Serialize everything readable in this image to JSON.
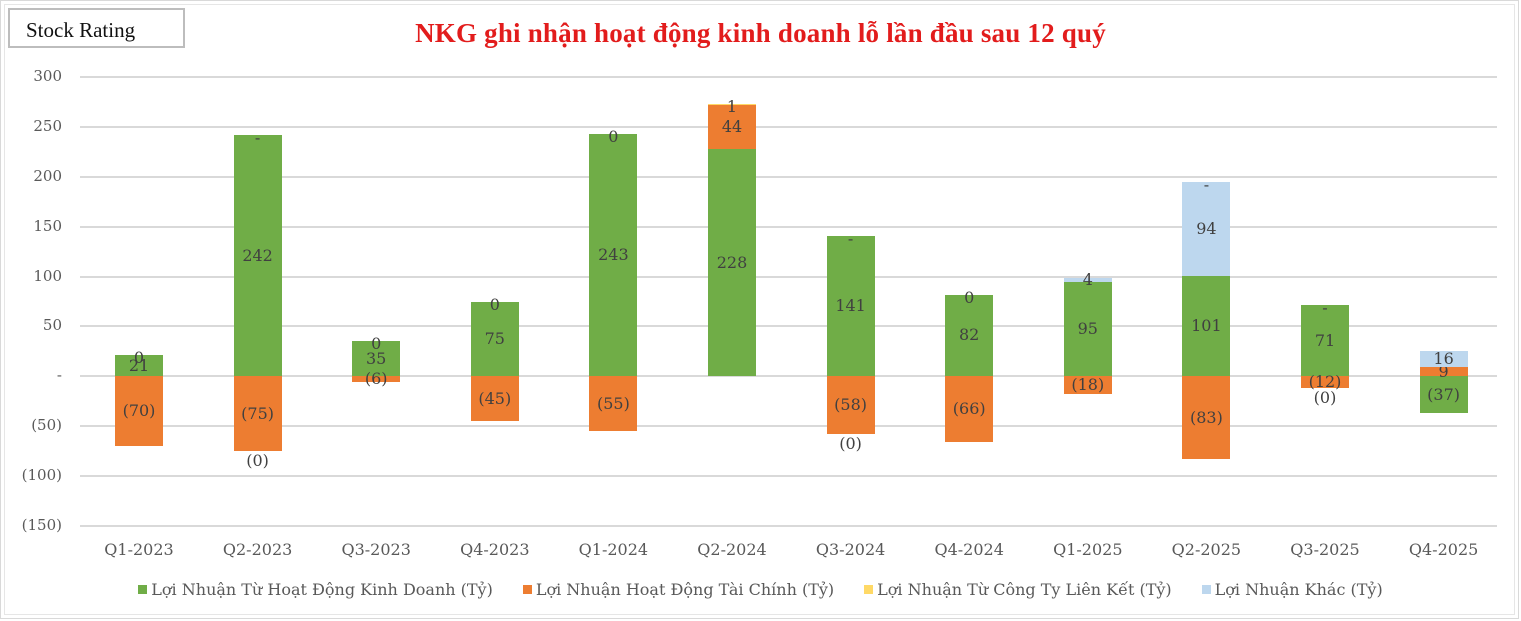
{
  "header": {
    "badge": "Stock Rating",
    "title": "NKG ghi nhận hoạt động kinh doanh lỗ lần đầu sau 12 quý"
  },
  "colors": {
    "operating": "#70ad47",
    "financial": "#ed7d31",
    "associates": "#ffd966",
    "other": "#bdd7ee",
    "title": "#e21c1c"
  },
  "axis": {
    "yticks": [
      "300",
      "250",
      "200",
      "150",
      "100",
      "50",
      "-",
      "(50)",
      "(100)",
      "(150)"
    ]
  },
  "legend": [
    {
      "label": "Lợi Nhuận Từ Hoạt Động Kinh Doanh (Tỷ)",
      "color": "#70ad47"
    },
    {
      "label": "Lợi Nhuận Hoạt Động Tài Chính (Tỷ)",
      "color": "#ed7d31"
    },
    {
      "label": "Lợi Nhuận Từ Công Ty Liên Kết (Tỷ)",
      "color": "#ffd966"
    },
    {
      "label": "Lợi Nhuận Khác (Tỷ)",
      "color": "#bdd7ee"
    }
  ],
  "chart_data": {
    "type": "bar",
    "stacked": true,
    "title": "NKG ghi nhận hoạt động kinh doanh lỗ lần đầu sau 12 quý",
    "xlabel": "",
    "ylabel": "",
    "ylim": [
      -150,
      300
    ],
    "yticks": [
      300,
      250,
      200,
      150,
      100,
      50,
      0,
      -50,
      -100,
      -150
    ],
    "grid": true,
    "legend_position": "bottom",
    "categories": [
      "Q1-2023",
      "Q2-2023",
      "Q3-2023",
      "Q4-2023",
      "Q1-2024",
      "Q2-2024",
      "Q3-2024",
      "Q4-2024",
      "Q1-2025",
      "Q2-2025",
      "Q3-2025",
      "Q4-2025"
    ],
    "series": [
      {
        "name": "Lợi Nhuận Từ Hoạt Động Kinh Doanh (Tỷ)",
        "color": "#70ad47",
        "values": [
          21,
          242,
          35,
          75,
          243,
          228,
          141,
          82,
          95,
          101,
          71,
          -37
        ],
        "labels": [
          "21",
          "242",
          "35",
          "75",
          "243",
          "228",
          "141",
          "82",
          "95",
          "101",
          "71",
          "(37)"
        ]
      },
      {
        "name": "Lợi Nhuận Hoạt Động Tài Chính (Tỷ)",
        "color": "#ed7d31",
        "values": [
          -70,
          -75,
          -6,
          -45,
          -55,
          44,
          -58,
          -66,
          -18,
          -83,
          -12,
          9
        ],
        "labels": [
          "(70)",
          "(75)",
          "(6)",
          "(45)",
          "(55)",
          "44",
          "(58)",
          "(66)",
          "(18)",
          "(83)",
          "(12)",
          "9"
        ]
      },
      {
        "name": "Lợi Nhuận Từ Công Ty Liên Kết (Tỷ)",
        "color": "#ffd966",
        "values": [
          0,
          0,
          0,
          0,
          0,
          1,
          0,
          0,
          0,
          0,
          0,
          0
        ],
        "labels": [
          "0",
          "-",
          "0",
          "0",
          "0",
          "1",
          "-",
          "0",
          "",
          "-",
          "-",
          ""
        ]
      },
      {
        "name": "Lợi Nhuận Khác (Tỷ)",
        "color": "#bdd7ee",
        "values": [
          0,
          0,
          0,
          0,
          0,
          0,
          0,
          0,
          4,
          94,
          0,
          16
        ],
        "labels": [
          "",
          "(0)",
          "",
          "",
          "",
          "",
          "(0)",
          "",
          "4",
          "94",
          "(0)",
          "16"
        ]
      }
    ]
  }
}
